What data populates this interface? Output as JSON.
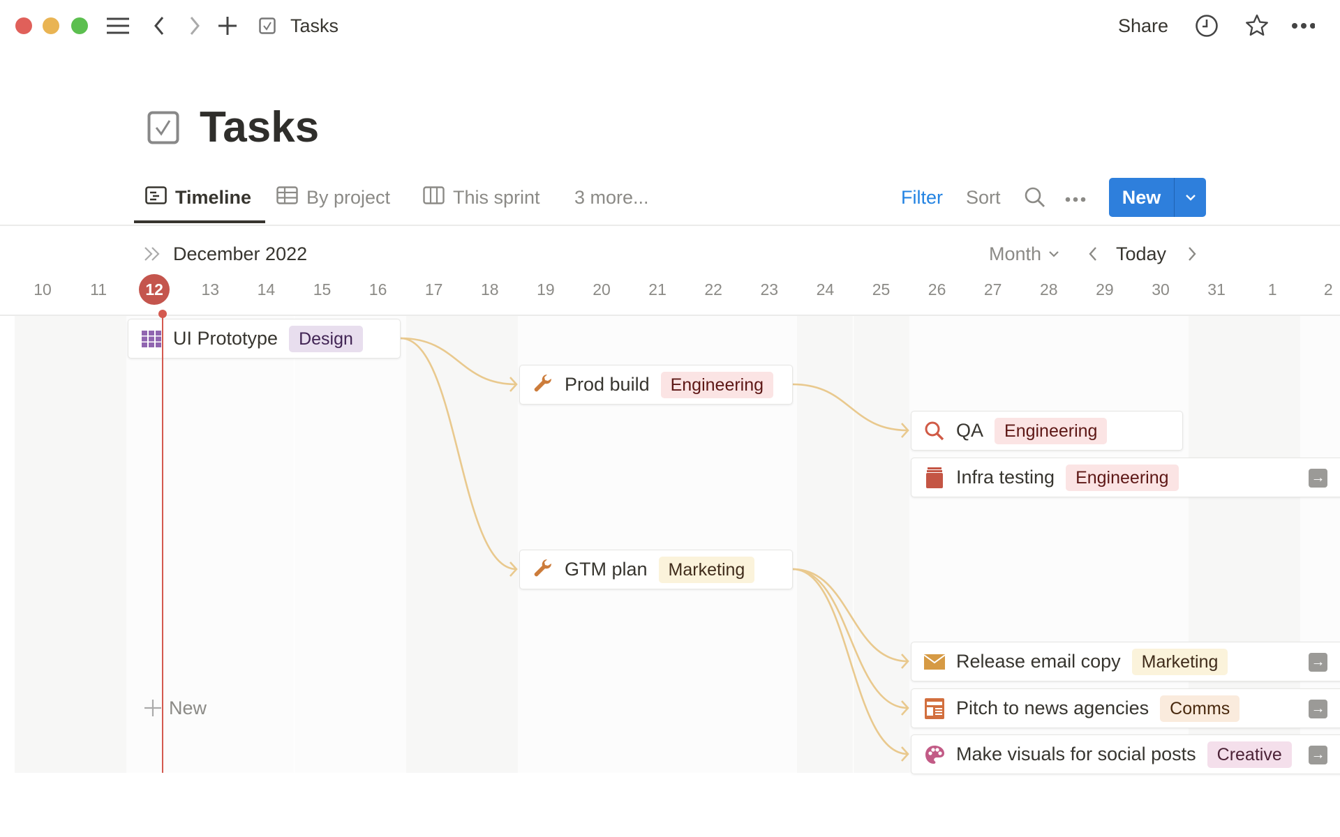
{
  "window": {
    "breadcrumb": "Tasks",
    "share_label": "Share"
  },
  "page": {
    "title": "Tasks"
  },
  "tabs": [
    {
      "label": "Timeline",
      "active": true
    },
    {
      "label": "By project"
    },
    {
      "label": "This sprint"
    },
    {
      "label": "3 more..."
    }
  ],
  "toolbar": {
    "filter": "Filter",
    "sort": "Sort",
    "new": "New"
  },
  "timeline": {
    "month_label": "December 2022",
    "scale": "Month",
    "today_label": "Today",
    "days": [
      "10",
      "11",
      "12",
      "13",
      "14",
      "15",
      "16",
      "17",
      "18",
      "19",
      "20",
      "21",
      "22",
      "23",
      "24",
      "25",
      "26",
      "27",
      "28",
      "29",
      "30",
      "31",
      "1",
      "2"
    ],
    "today": "12",
    "new_label": "New"
  },
  "tasks": [
    {
      "title": "UI Prototype",
      "tag": "Design",
      "icon": "grid-icon",
      "start": "2022-12-12",
      "end": "2022-12-16"
    },
    {
      "title": "Prod build",
      "tag": "Engineering",
      "icon": "wrench-icon",
      "start": "2022-12-19",
      "end": "2022-12-23"
    },
    {
      "title": "QA",
      "tag": "Engineering",
      "icon": "magnifier-icon",
      "start": "2022-12-26",
      "end": "2022-12-30"
    },
    {
      "title": "Infra testing",
      "tag": "Engineering",
      "icon": "jar-icon",
      "start": "2022-12-26",
      "open_arrow": true
    },
    {
      "title": "GTM plan",
      "tag": "Marketing",
      "icon": "wrench-icon",
      "start": "2022-12-19",
      "end": "2022-12-23"
    },
    {
      "title": "Release email copy",
      "tag": "Marketing",
      "icon": "envelope-icon",
      "start": "2022-12-26",
      "open_arrow": true
    },
    {
      "title": "Pitch to news agencies",
      "tag": "Comms",
      "icon": "newspaper-icon",
      "start": "2022-12-26",
      "open_arrow": true
    },
    {
      "title": "Make visuals for social posts",
      "tag": "Creative",
      "icon": "palette-icon",
      "start": "2022-12-26",
      "open_arrow": true
    }
  ],
  "dependencies": [
    [
      "UI Prototype",
      "Prod build"
    ],
    [
      "UI Prototype",
      "GTM plan"
    ],
    [
      "Prod build",
      "QA"
    ],
    [
      "GTM plan",
      "Release email copy"
    ],
    [
      "GTM plan",
      "Pitch to news agencies"
    ],
    [
      "GTM plan",
      "Make visuals for social posts"
    ]
  ],
  "tag_colors": {
    "Design": {
      "bg": "#e8deee",
      "fg": "#412454"
    },
    "Engineering": {
      "bg": "#fbe4e4",
      "fg": "#5d1715"
    },
    "Marketing": {
      "bg": "#fbf3db",
      "fg": "#402c1b"
    },
    "Comms": {
      "bg": "#faebdd",
      "fg": "#49290e"
    },
    "Creative": {
      "bg": "#f4dfeb",
      "fg": "#4c2337"
    }
  },
  "colors": {
    "accent": "#2383e2",
    "today": "#c4554d",
    "connector": "#e9c98e"
  }
}
